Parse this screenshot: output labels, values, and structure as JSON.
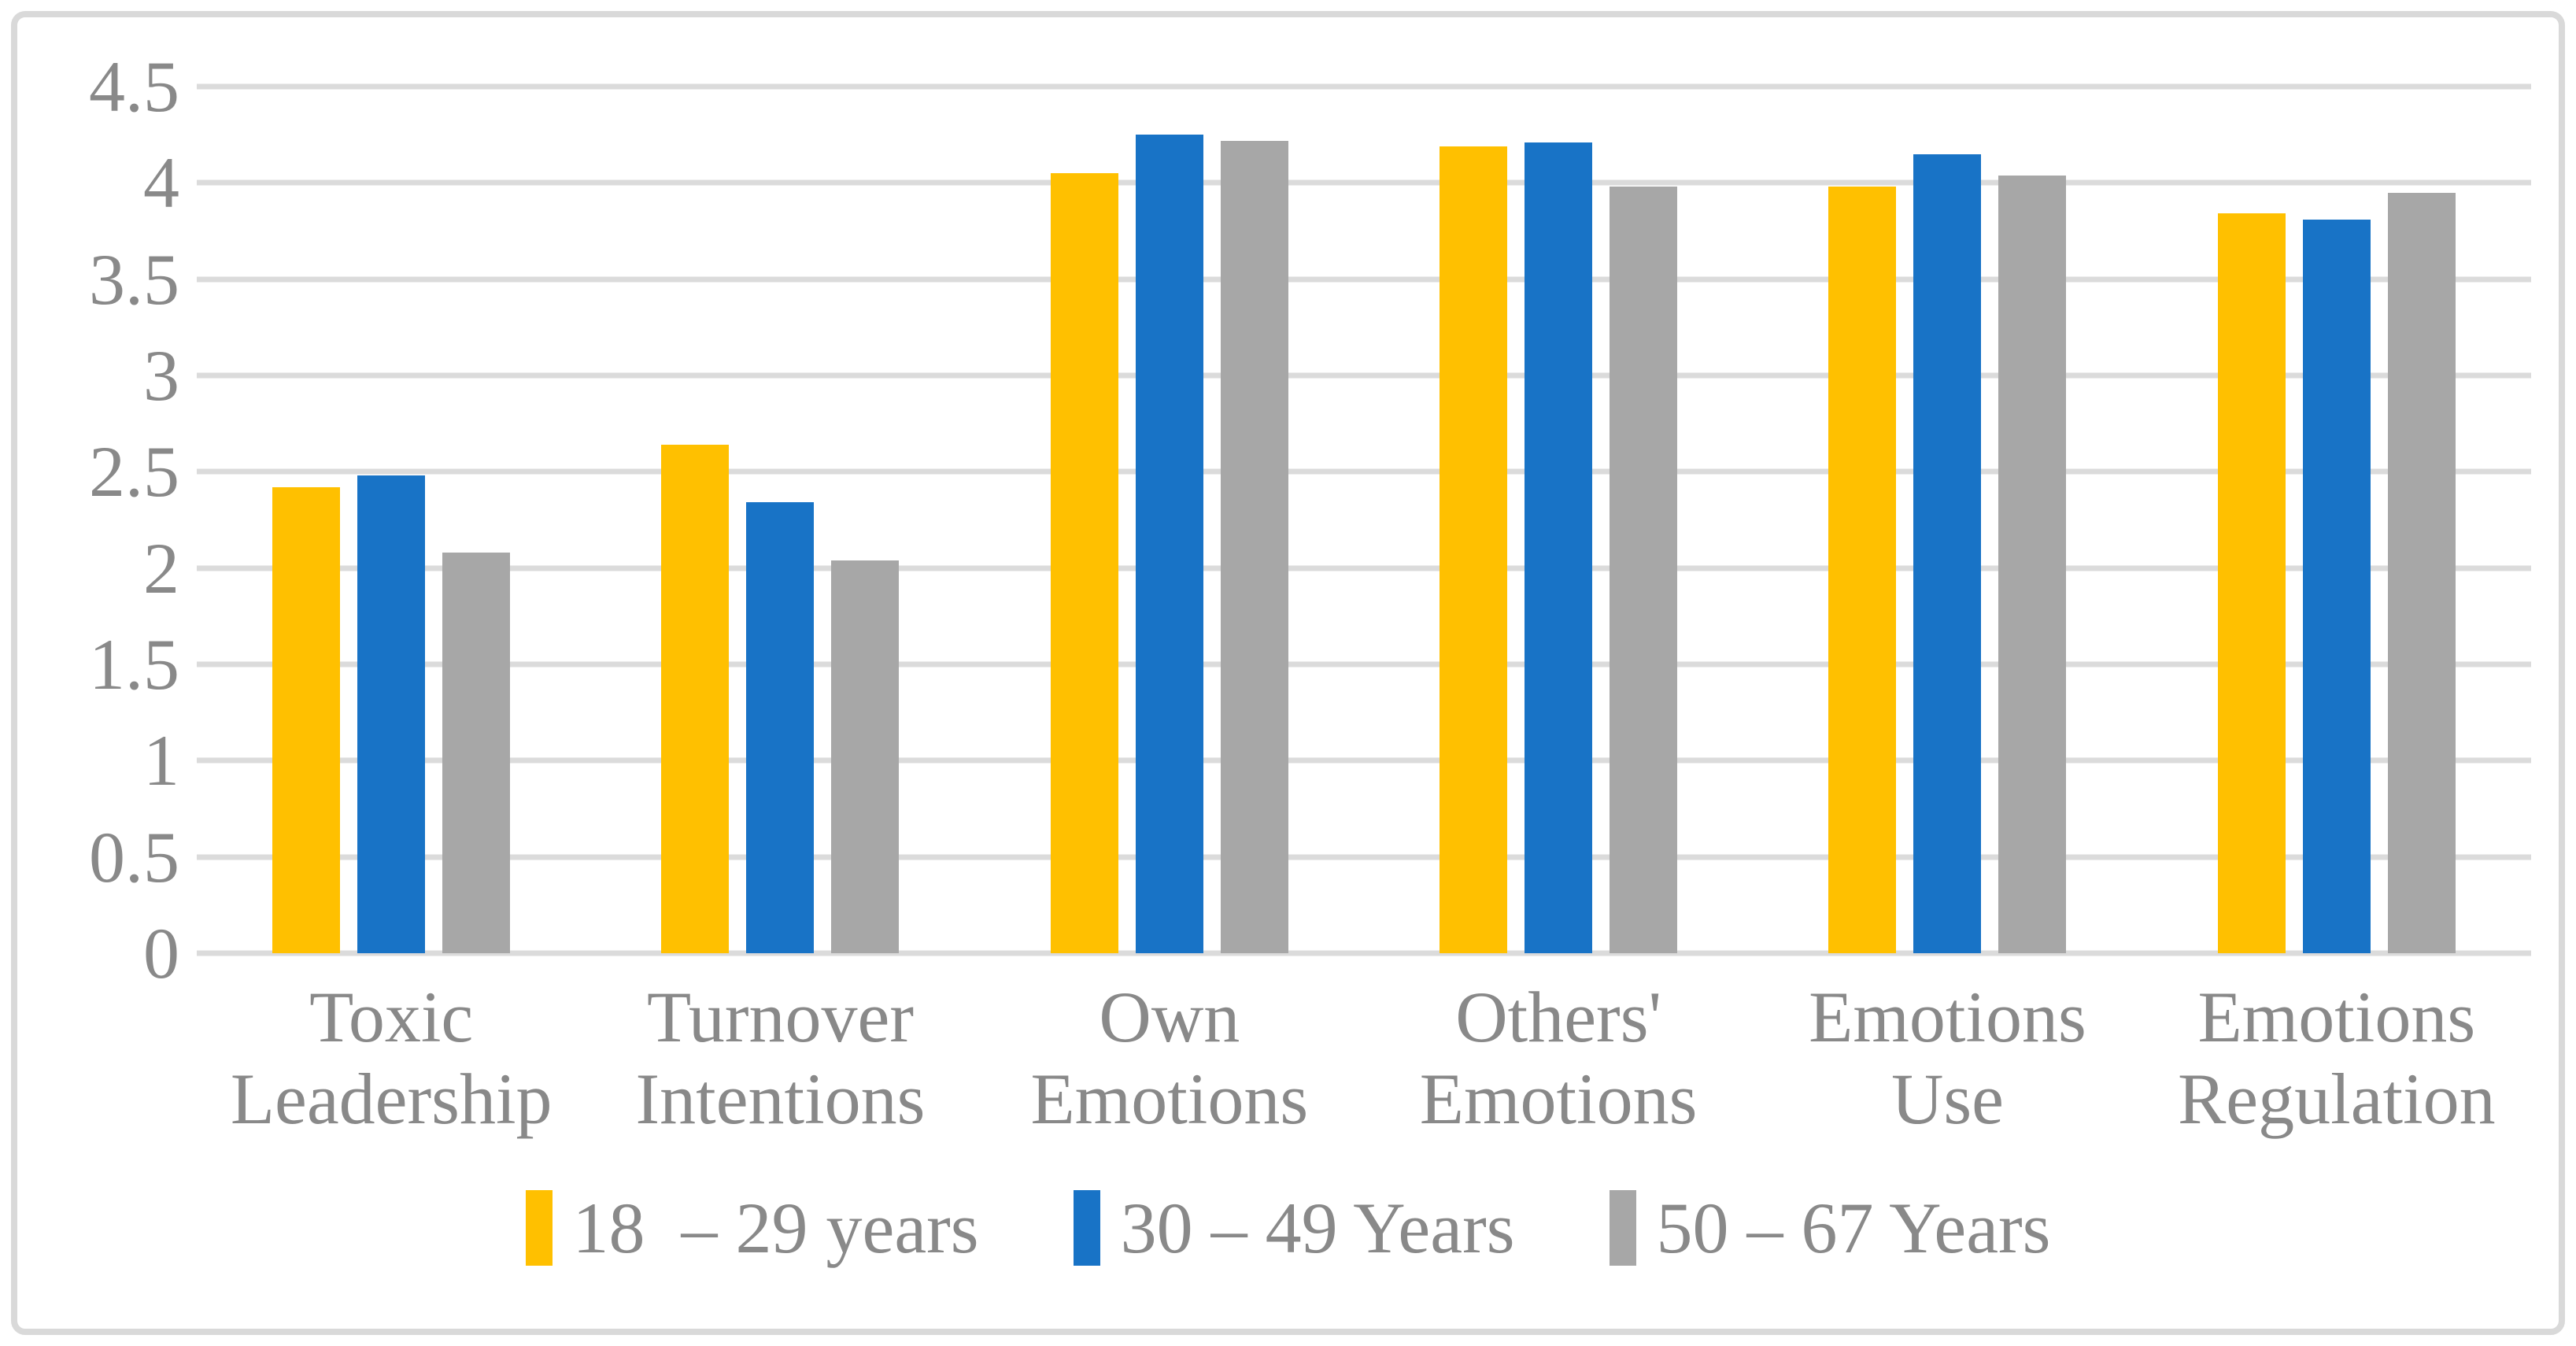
{
  "figure": {
    "background": "#FFFFFF",
    "border_color": "#D9D9D9"
  },
  "chart_data": {
    "type": "bar",
    "ylim": [
      0,
      4.5
    ],
    "ytick_step": 0.5,
    "yticks": [
      "4.5",
      "4",
      "3.5",
      "3",
      "2.5",
      "2",
      "1.5",
      "1",
      "0.5",
      "0"
    ],
    "grid": true,
    "gridline_color": "#DBDBDB",
    "text_color": "#898989",
    "legend_position": "bottom",
    "categories": [
      {
        "label": "Toxic Leadership",
        "lines": [
          "Toxic",
          "Leadership"
        ]
      },
      {
        "label": "Turnover Intentions",
        "lines": [
          "Turnover",
          "Intentions"
        ]
      },
      {
        "label": "Own Emotions",
        "lines": [
          "Own",
          "Emotions"
        ]
      },
      {
        "label": "Others' Emotions",
        "lines": [
          "Others'",
          "Emotions"
        ]
      },
      {
        "label": "Emotions Use",
        "lines": [
          "Emotions Use"
        ]
      },
      {
        "label": "Emotions Regulation",
        "lines": [
          "Emotions",
          "Regulation"
        ]
      }
    ],
    "series": [
      {
        "name": "18  – 29 years",
        "color": "#FFC000",
        "values": [
          2.42,
          2.64,
          4.05,
          4.19,
          3.98,
          3.84
        ]
      },
      {
        "name": "30 – 49 Years",
        "color": "#1873C6",
        "values": [
          2.48,
          2.34,
          4.25,
          4.21,
          4.15,
          3.81
        ]
      },
      {
        "name": "50 – 67 Years",
        "color": "#A7A7A7",
        "values": [
          2.08,
          2.04,
          4.22,
          3.98,
          4.04,
          3.95
        ]
      }
    ]
  }
}
